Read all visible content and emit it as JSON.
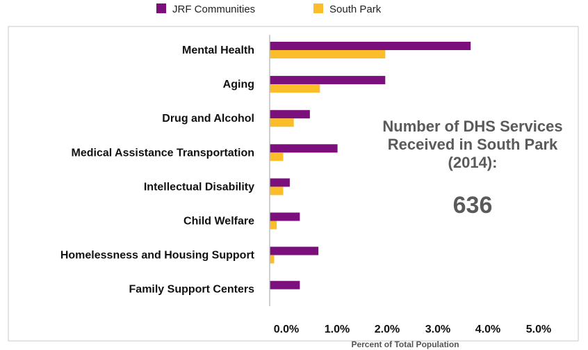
{
  "chart_data": {
    "type": "bar",
    "orientation": "horizontal",
    "categories": [
      "Mental Health",
      "Aging",
      "Drug and Alcohol",
      "Medical Assistance Transportation",
      "Intellectual Disability",
      "Child Welfare",
      "Homelessness and Housing Support",
      "Family Support Centers"
    ],
    "series": [
      {
        "name": "JRF Communities",
        "color": "#7b0f7b",
        "values": [
          4.0,
          2.3,
          0.8,
          1.35,
          0.4,
          0.6,
          0.97,
          0.6
        ]
      },
      {
        "name": "South Park",
        "color": "#fbbd2a",
        "values": [
          2.3,
          1.0,
          0.48,
          0.27,
          0.27,
          0.14,
          0.09,
          0.0
        ]
      }
    ],
    "x_ticks": [
      "0.0%",
      "1.0%",
      "2.0%",
      "3.0%",
      "4.0%",
      "5.0%"
    ],
    "xlim": [
      0,
      5
    ],
    "xlabel": "Percent of Total Population",
    "legend_position": "top",
    "annotation": {
      "lines": [
        "Number of DHS Services",
        "Received in South Park",
        "(2014):"
      ],
      "value": "636"
    }
  }
}
